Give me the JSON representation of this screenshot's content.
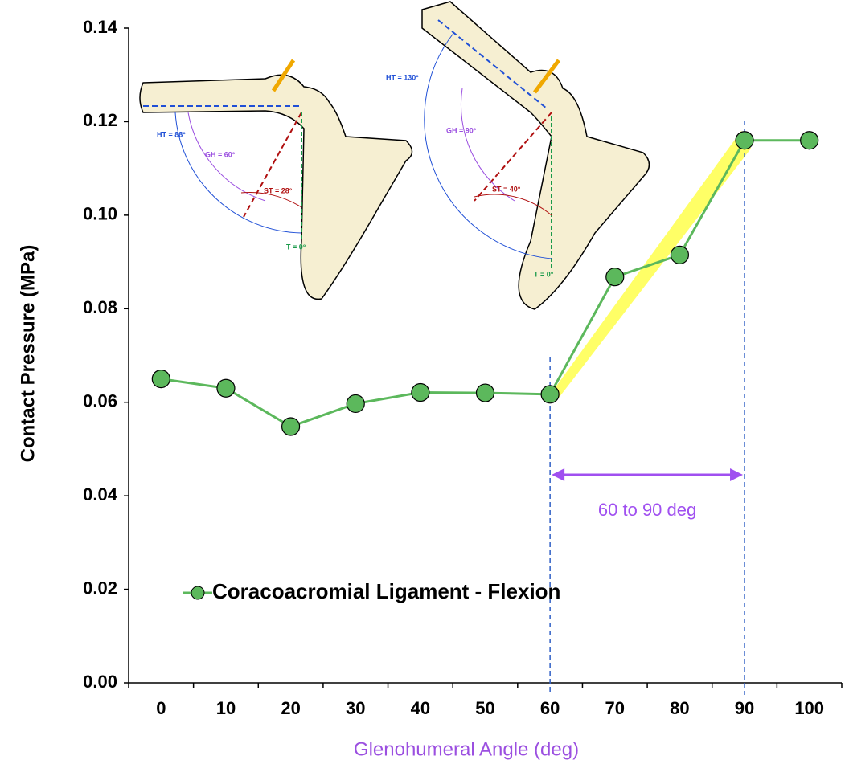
{
  "chart_data": {
    "type": "line",
    "x_label": "Glenohumeral Angle (deg)",
    "y_label": "Contact Pressure (MPa)",
    "categories": [
      0,
      10,
      20,
      30,
      40,
      50,
      60,
      70,
      80,
      90,
      100
    ],
    "series": [
      {
        "name": "Coracoacromial Ligament - Flexion",
        "color": "#5cb85c",
        "values": [
          0.065,
          0.063,
          0.0548,
          0.0597,
          0.0621,
          0.062,
          0.0617,
          0.0868,
          0.0915,
          0.116,
          0.116
        ]
      }
    ],
    "ylim": [
      0,
      0.14
    ],
    "yticks": [
      {
        "value": 0,
        "label": "0.00"
      },
      0.02,
      0.04,
      0.06,
      0.08,
      {
        "value": 0.1,
        "label": "0.10"
      },
      0.12,
      0.14
    ],
    "span": [
      60,
      90
    ],
    "span_label": "60 to 90 deg",
    "legend": "lower left",
    "illustrations": [
      {
        "labels": [
          "HT = 88°",
          "GH = 60°",
          "ST = 28°",
          "T = 0°"
        ]
      },
      {
        "labels": [
          "HT = 130°",
          "GH = 90°",
          "ST = 40°",
          "T = 0°"
        ]
      }
    ]
  }
}
